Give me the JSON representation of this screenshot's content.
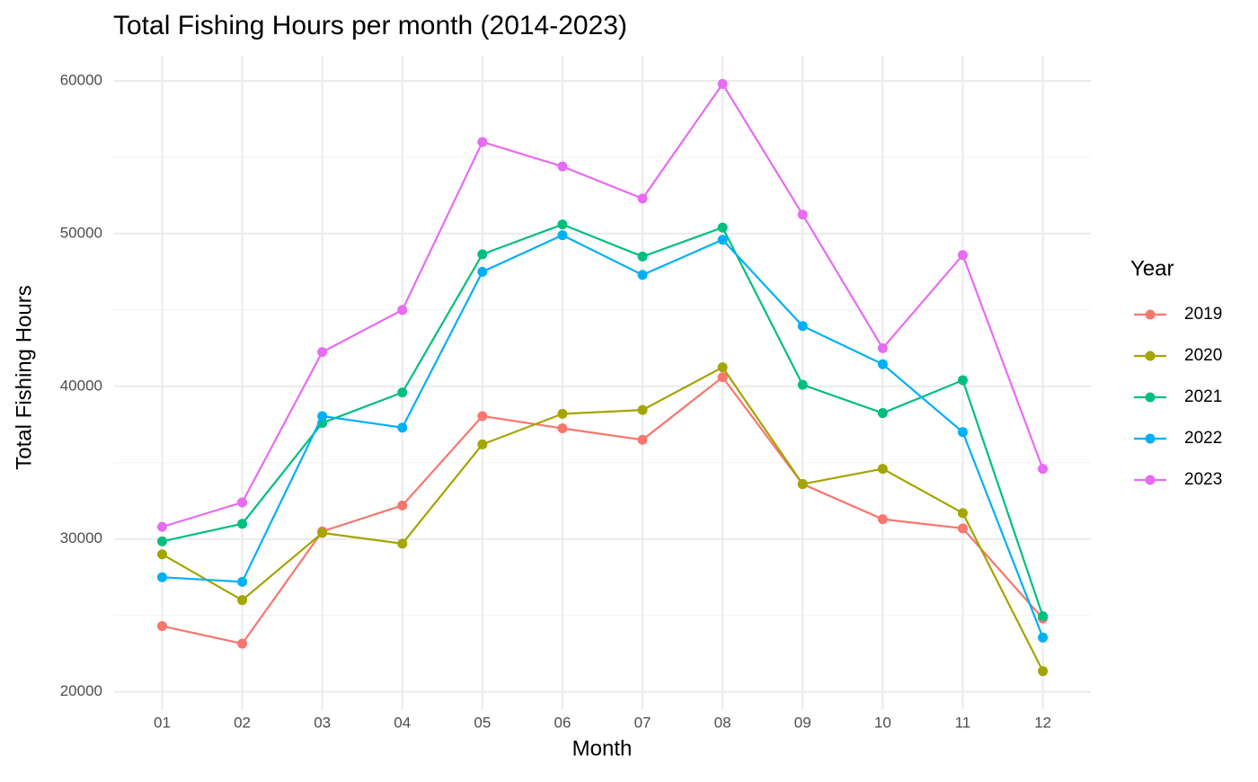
{
  "chart_data": {
    "type": "line",
    "title": "Total Fishing Hours per month (2014-2023)",
    "x_label": "Month",
    "y_label": "Total Fishing Hours",
    "legend_title": "Year",
    "legend_position": "right",
    "grid": true,
    "categories": [
      "01",
      "02",
      "03",
      "04",
      "05",
      "06",
      "07",
      "08",
      "09",
      "10",
      "11",
      "12"
    ],
    "ylim": [
      18800,
      61650
    ],
    "yticks": [
      20000,
      30000,
      40000,
      50000,
      60000
    ],
    "series": [
      {
        "name": "2019",
        "color": "#F8766D",
        "values": [
          24300,
          23150,
          30500,
          32200,
          38050,
          37250,
          36500,
          40600,
          33600,
          31300,
          30700,
          24800
        ]
      },
      {
        "name": "2020",
        "color": "#A3A500",
        "values": [
          29000,
          26000,
          30400,
          29700,
          36200,
          38200,
          38450,
          41250,
          33600,
          34600,
          31700,
          21350
        ]
      },
      {
        "name": "2021",
        "color": "#00BF7D",
        "values": [
          29850,
          31000,
          37600,
          39600,
          48650,
          50600,
          48500,
          50400,
          40100,
          38250,
          40400,
          24950
        ]
      },
      {
        "name": "2022",
        "color": "#00B0F6",
        "values": [
          27500,
          27200,
          38050,
          37300,
          47500,
          49900,
          47300,
          49600,
          43950,
          41450,
          37000,
          23550
        ]
      },
      {
        "name": "2023",
        "color": "#E76BF3",
        "values": [
          30800,
          32400,
          42250,
          45000,
          56000,
          54400,
          52300,
          59800,
          51250,
          42500,
          48600,
          34600
        ]
      }
    ]
  }
}
